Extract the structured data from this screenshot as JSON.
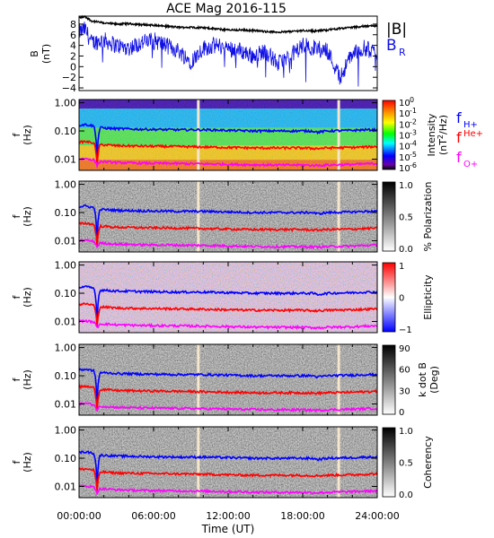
{
  "title": "ACE Mag 2016-115",
  "colors": {
    "B_total": "#000000",
    "B_R": "#1010e6",
    "f_H": "#0000ff",
    "f_He": "#ff0000",
    "f_O": "#ff00ff",
    "data_gap": "#f5e6cc"
  },
  "x_axis": {
    "label": "Time (UT)",
    "ticks": [
      "00:00:00",
      "06:00:00",
      "12:00:00",
      "18:00:00",
      "24:00:00"
    ],
    "range_hours": [
      0,
      24
    ]
  },
  "freq_axis": {
    "label_top": "f",
    "label_bottom": "(Hz)",
    "ticks": [
      "1.00",
      "0.10",
      "0.01"
    ],
    "scale": "log",
    "range_hz": [
      0.004,
      1.3
    ]
  },
  "legends": {
    "top": {
      "total": "|B|",
      "radial_main": "B",
      "radial_sub": "R"
    },
    "gyro": [
      {
        "main": "f",
        "sub": "H+",
        "color": "#0000ff"
      },
      {
        "main": "f",
        "sup": "He+",
        "color": "#ff0000"
      },
      {
        "main": "f",
        "sub": "O+",
        "color": "#ff00ff"
      }
    ]
  },
  "colorbars": {
    "intensity": {
      "label_line1": "Intensity",
      "label_line2_main": "(nT",
      "label_line2_sup": "2",
      "label_line2_end": "/Hz)",
      "tick_base": "10",
      "tick_exps": [
        "0",
        "-1",
        "-2",
        "-3",
        "-4",
        "-5",
        "-6"
      ]
    },
    "polarization": {
      "label": "% Polarization",
      "ticks": [
        "1.0",
        "0.5",
        "0.0"
      ]
    },
    "ellipticity": {
      "label": "Ellipticity",
      "ticks": [
        "1",
        "0",
        "−1"
      ]
    },
    "kdotb": {
      "label_line1": "k dot B",
      "label_line2": "(Deg)",
      "ticks": [
        "90",
        "60",
        "30",
        "0"
      ]
    },
    "coherency": {
      "label": "Coherency",
      "ticks": [
        "1.0",
        "0.5",
        "0.0"
      ]
    }
  },
  "chart_data": [
    {
      "type": "line",
      "panel": "magnetic field",
      "ylabel_main": "B",
      "ylabel_unit": "(nT)",
      "yticks": [
        "8",
        "6",
        "4",
        "2",
        "0",
        "−2",
        "−4"
      ],
      "ylim": [
        -4.5,
        9.5
      ],
      "x": [
        0,
        0.5,
        1,
        2,
        3,
        4,
        5,
        6,
        7,
        8,
        9,
        10,
        11,
        12,
        13,
        14,
        15,
        16,
        17,
        18,
        19,
        20,
        21,
        22,
        23,
        24
      ],
      "series": [
        {
          "name": "|B|",
          "values": [
            9.2,
            9.4,
            8.6,
            8.2,
            8.0,
            8.1,
            7.9,
            7.8,
            7.6,
            7.4,
            7.4,
            7.3,
            7.1,
            6.9,
            6.9,
            6.8,
            6.6,
            6.5,
            6.6,
            6.8,
            6.7,
            6.9,
            7.2,
            7.4,
            7.6,
            7.7
          ]
        },
        {
          "name": "B R",
          "values": [
            6.5,
            7.0,
            4.5,
            5.0,
            4.0,
            3.5,
            4.5,
            5.0,
            4.0,
            3.0,
            1.0,
            3.5,
            4.0,
            3.5,
            3.0,
            2.0,
            3.0,
            0.5,
            2.0,
            4.0,
            3.5,
            3.0,
            -2.0,
            2.5,
            3.5,
            2.5
          ]
        }
      ],
      "data_gaps_hours": [
        9.6,
        20.9
      ]
    },
    {
      "type": "heatmap",
      "panel": "power spectral intensity",
      "colorscale": "rainbow",
      "value_range_log10": [
        -6,
        0
      ],
      "data_gaps_hours": [
        9.6,
        20.9
      ]
    },
    {
      "type": "heatmap",
      "panel": "percent polarization",
      "colorscale": "grayscale",
      "value_range": [
        0,
        1
      ],
      "data_gaps_hours": [
        9.6,
        20.9
      ]
    },
    {
      "type": "heatmap",
      "panel": "ellipticity",
      "colorscale": "blue-white-red",
      "value_range": [
        -1,
        1
      ],
      "data_gaps_hours": []
    },
    {
      "type": "heatmap",
      "panel": "k dot B angle",
      "colorscale": "grayscale",
      "value_range_deg": [
        0,
        90
      ],
      "data_gaps_hours": [
        9.6,
        20.9
      ]
    },
    {
      "type": "heatmap",
      "panel": "coherency",
      "colorscale": "grayscale",
      "value_range": [
        0,
        1
      ],
      "data_gaps_hours": [
        9.6,
        20.9
      ]
    }
  ],
  "gyrofrequency_hz": {
    "x": [
      0,
      0.5,
      1.2,
      1.45,
      1.7,
      3,
      5,
      8,
      10,
      12,
      14,
      16,
      18,
      18.8,
      19.2,
      20,
      22,
      23,
      24
    ],
    "f_H": [
      0.16,
      0.17,
      0.15,
      0.006,
      0.13,
      0.12,
      0.115,
      0.11,
      0.11,
      0.105,
      0.1,
      0.1,
      0.1,
      0.1,
      0.09,
      0.1,
      0.105,
      0.11,
      0.11
    ],
    "f_He": [
      0.04,
      0.042,
      0.038,
      0.006,
      0.033,
      0.03,
      0.029,
      0.028,
      0.027,
      0.026,
      0.025,
      0.025,
      0.025,
      0.024,
      0.024,
      0.025,
      0.026,
      0.027,
      0.028
    ],
    "f_O": [
      0.01,
      0.0105,
      0.0095,
      0.006,
      0.0083,
      0.0076,
      0.0072,
      0.007,
      0.0068,
      0.0066,
      0.0063,
      0.0062,
      0.0062,
      0.006,
      0.006,
      0.0062,
      0.0065,
      0.0068,
      0.007
    ]
  }
}
